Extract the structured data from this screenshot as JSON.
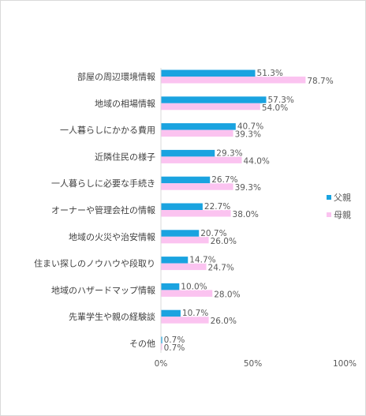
{
  "chart_data": {
    "type": "bar",
    "orientation": "horizontal",
    "title": "",
    "xlabel": "",
    "ylabel": "",
    "xlim": [
      0,
      100
    ],
    "x_ticks": [
      "0%",
      "50%",
      "100%"
    ],
    "grid": false,
    "legend_position": "right",
    "categories": [
      "部屋の周辺環境情報",
      "地域の相場情報",
      "一人暮らしにかかる費用",
      "近隣住民の様子",
      "一人暮らしに必要な手続き",
      "オーナーや管理会社の情報",
      "地域の火災や治安情報",
      "住まい探しのノウハウや段取り",
      "地域のハザードマップ情報",
      "先輩学生や親の経験談",
      "その他"
    ],
    "series": [
      {
        "name": "父親",
        "color": "#1aa3e0",
        "values": [
          51.3,
          57.3,
          40.7,
          29.3,
          26.7,
          22.7,
          20.7,
          14.7,
          10.0,
          10.7,
          0.7
        ],
        "labels": [
          "51.3%",
          "57.3%",
          "40.7%",
          "29.3%",
          "26.7%",
          "22.7%",
          "20.7%",
          "14.7%",
          "10.0%",
          "10.7%",
          "0.7%"
        ]
      },
      {
        "name": "母親",
        "color": "#fbc3f0",
        "values": [
          78.7,
          54.0,
          39.3,
          44.0,
          39.3,
          38.0,
          26.0,
          24.7,
          28.0,
          26.0,
          0.7
        ],
        "labels": [
          "78.7%",
          "54.0%",
          "39.3%",
          "44.0%",
          "39.3%",
          "38.0%",
          "26.0%",
          "24.7%",
          "28.0%",
          "26.0%",
          "0.7%"
        ]
      }
    ]
  }
}
